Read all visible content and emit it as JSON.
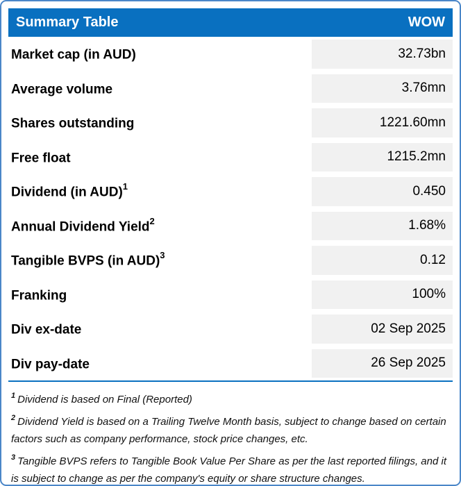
{
  "chart_data": {
    "type": "table",
    "title": "Summary Table",
    "value_column_header": "WOW",
    "columns": [
      "Summary Table",
      "WOW"
    ],
    "rows": [
      {
        "label": "Market cap (in AUD)",
        "sup": "",
        "value": "32.73bn"
      },
      {
        "label": "Average volume",
        "sup": "",
        "value": "3.76mn"
      },
      {
        "label": "Shares outstanding",
        "sup": "",
        "value": "1221.60mn"
      },
      {
        "label": "Free float",
        "sup": "",
        "value": "1215.2mn"
      },
      {
        "label": "Dividend (in AUD)",
        "sup": "1",
        "value": "0.450"
      },
      {
        "label": "Annual Dividend Yield",
        "sup": "2",
        "value": "1.68%"
      },
      {
        "label": "Tangible BVPS (in AUD)",
        "sup": "3",
        "value": "0.12"
      },
      {
        "label": "Franking",
        "sup": "",
        "value": "100%"
      },
      {
        "label": "Div ex-date",
        "sup": "",
        "value": "02 Sep 2025"
      },
      {
        "label": "Div pay-date",
        "sup": "",
        "value": "26 Sep 2025"
      }
    ],
    "footnotes": [
      {
        "sup": "1",
        "text": "Dividend is based on Final (Reported)"
      },
      {
        "sup": "2",
        "text": "Dividend Yield is based on a Trailing Twelve Month basis, subject to change based on certain factors such as company performance, stock price changes, etc."
      },
      {
        "sup": "3",
        "text": "Tangible BVPS refers to Tangible Book Value Per Share as per the last reported filings, and it is subject to change as per the company's equity or share structure changes."
      }
    ],
    "layout": {
      "legend": "none",
      "grid": "off"
    }
  },
  "colors": {
    "header_blue": "#0970C0",
    "border_blue": "#4A86C8",
    "divider_blue": "#0970C0",
    "value_cell_gray": "#F1F1F1",
    "header_text": "#FFFFFF",
    "body_text": "#000000"
  }
}
